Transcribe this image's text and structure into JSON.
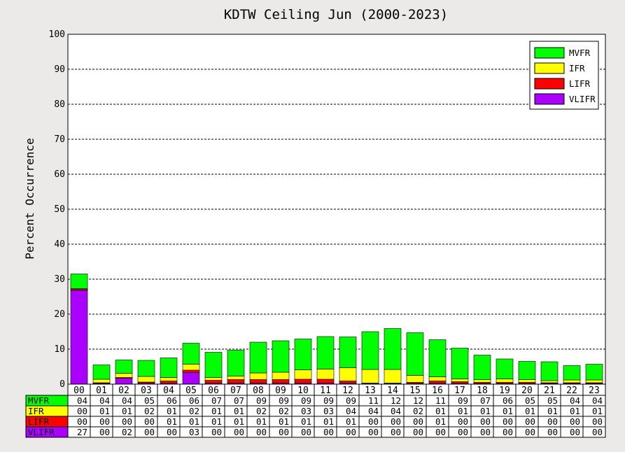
{
  "chart_data": {
    "type": "bar",
    "stacked": true,
    "title": "KDTW Ceiling Jun (2000-2023)",
    "xlabel": "",
    "ylabel": "Percent Occurrence",
    "ylim": [
      0,
      100
    ],
    "yticks": [
      "0",
      "10",
      "20",
      "30",
      "40",
      "50",
      "60",
      "70",
      "80",
      "90",
      "100"
    ],
    "grid": true,
    "legend_position": "top-right",
    "categories": [
      "00",
      "01",
      "02",
      "03",
      "04",
      "05",
      "06",
      "07",
      "08",
      "09",
      "10",
      "11",
      "12",
      "13",
      "14",
      "15",
      "16",
      "17",
      "18",
      "19",
      "20",
      "21",
      "22",
      "23"
    ],
    "series": [
      {
        "name": "VLIFR",
        "color": "#AA00FF",
        "values": [
          26.8,
          0.2,
          1.7,
          0.3,
          0.3,
          3.3,
          0.3,
          0.3,
          0.3,
          0.3,
          0.3,
          0.3,
          0.3,
          0.2,
          0.2,
          0.2,
          0.3,
          0.3,
          0.2,
          0.2,
          0.2,
          0.2,
          0.2,
          0.2
        ],
        "table_values": [
          "27",
          "00",
          "02",
          "00",
          "00",
          "03",
          "00",
          "00",
          "00",
          "00",
          "00",
          "00",
          "00",
          "00",
          "00",
          "00",
          "00",
          "00",
          "00",
          "00",
          "00",
          "00",
          "00",
          "00"
        ]
      },
      {
        "name": "LIFR",
        "color": "#FF0000",
        "values": [
          0.3,
          0.2,
          0.2,
          0.3,
          0.6,
          0.7,
          0.8,
          1.0,
          1.0,
          1.0,
          1.1,
          1.1,
          0.6,
          0.1,
          0.1,
          0.3,
          0.6,
          0.4,
          0.3,
          0.3,
          0.3,
          0.2,
          0.2,
          0.2
        ],
        "table_values": [
          "00",
          "00",
          "00",
          "00",
          "01",
          "01",
          "01",
          "01",
          "01",
          "01",
          "01",
          "01",
          "01",
          "00",
          "00",
          "00",
          "01",
          "00",
          "00",
          "00",
          "00",
          "00",
          "00",
          "00"
        ]
      },
      {
        "name": "IFR",
        "color": "#FFFF00",
        "values": [
          0.2,
          1.0,
          1.2,
          1.6,
          1.0,
          1.7,
          0.8,
          1.0,
          1.9,
          2.1,
          2.7,
          2.9,
          3.8,
          3.9,
          3.9,
          2.0,
          1.2,
          0.8,
          0.8,
          1.0,
          0.8,
          0.6,
          0.8,
          0.8
        ],
        "table_values": [
          "00",
          "01",
          "01",
          "02",
          "01",
          "02",
          "01",
          "01",
          "02",
          "02",
          "03",
          "03",
          "04",
          "04",
          "04",
          "02",
          "01",
          "01",
          "01",
          "01",
          "01",
          "01",
          "01",
          "01"
        ]
      },
      {
        "name": "MVFR",
        "color": "#00FF00",
        "values": [
          4.2,
          4.1,
          3.8,
          4.6,
          5.6,
          6.0,
          7.2,
          7.4,
          8.8,
          9.0,
          8.8,
          9.3,
          8.8,
          10.8,
          11.7,
          12.2,
          10.6,
          8.8,
          7.0,
          5.7,
          5.2,
          5.4,
          4.1,
          4.5
        ],
        "table_values": [
          "04",
          "04",
          "04",
          "05",
          "06",
          "06",
          "07",
          "07",
          "09",
          "09",
          "09",
          "09",
          "09",
          "11",
          "12",
          "12",
          "11",
          "09",
          "07",
          "06",
          "05",
          "05",
          "04",
          "04"
        ]
      }
    ],
    "legend_order": [
      "MVFR",
      "IFR",
      "LIFR",
      "VLIFR"
    ],
    "table_order": [
      "MVFR",
      "IFR",
      "LIFR",
      "VLIFR"
    ]
  }
}
